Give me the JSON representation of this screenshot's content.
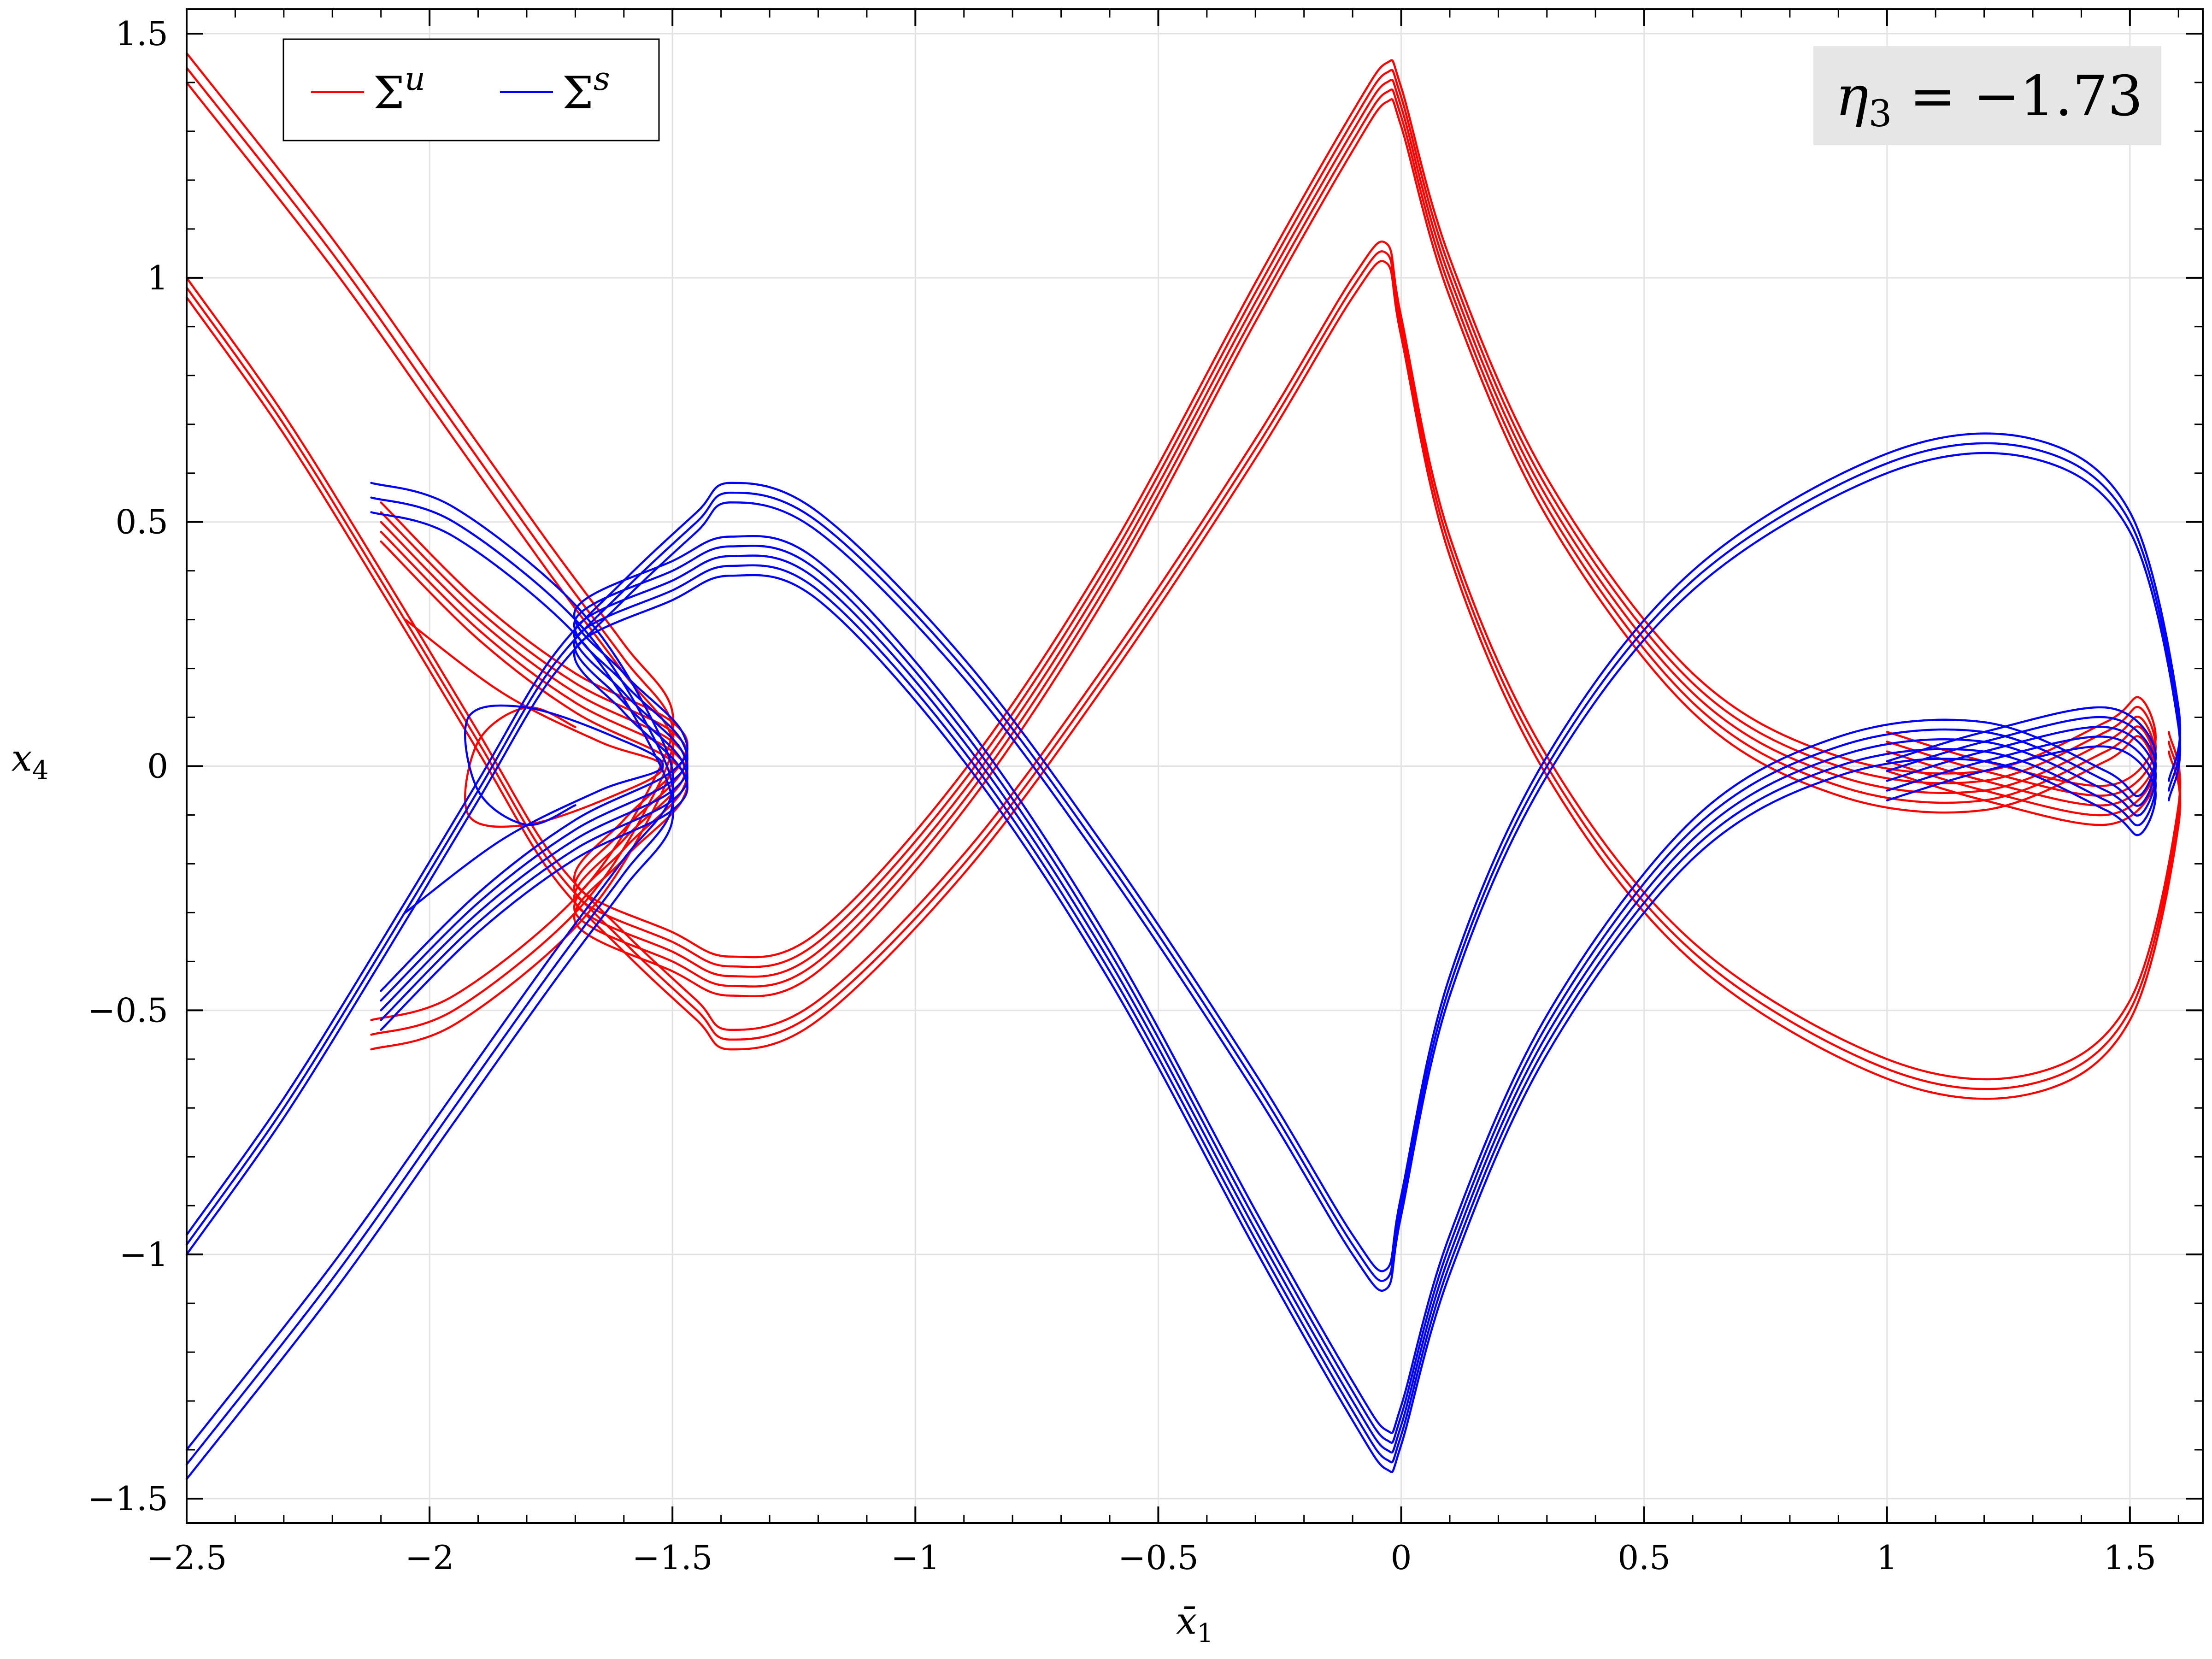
{
  "chart_data": {
    "type": "line",
    "title": "",
    "xlabel": "x̄",
    "xlabel_sub": "1",
    "ylabel": "x",
    "ylabel_sub": "4",
    "xlim": [
      -2.5,
      1.65
    ],
    "ylim": [
      -1.55,
      1.55
    ],
    "x_ticks": [
      -2.5,
      -2,
      -1.5,
      -1,
      -0.5,
      0,
      0.5,
      1,
      1.5
    ],
    "x_tick_labels": [
      "−2.5",
      "−2",
      "−1.5",
      "−1",
      "−0.5",
      "0",
      "0.5",
      "1",
      "1.5"
    ],
    "y_ticks": [
      -1.5,
      -1,
      -0.5,
      0,
      0.5,
      1,
      1.5
    ],
    "y_tick_labels": [
      "−1.5",
      "−1",
      "−0.5",
      "0",
      "0.5",
      "1",
      "1.5"
    ],
    "grid": true,
    "legend_position": "top-left",
    "annotation": {
      "prefix": "η",
      "sub": "3",
      "text": " = −1.73",
      "position": "top-right"
    },
    "series": [
      {
        "name": "Σ",
        "sup": "u",
        "color": "#ff0000",
        "strands": [
          {
            "label": "left-upper-band",
            "copies": [
              -0.03,
              0,
              0.03
            ],
            "points": [
              [
                -2.5,
                1.43
              ],
              [
                -2.2,
                1.05
              ],
              [
                -1.95,
                0.7
              ],
              [
                -1.75,
                0.42
              ],
              [
                -1.6,
                0.22
              ],
              [
                -1.5,
                0.08
              ],
              [
                -1.55,
                -0.08
              ],
              [
                -1.7,
                -0.3
              ],
              [
                -1.95,
                -0.5
              ],
              [
                -2.12,
                -0.55
              ]
            ]
          },
          {
            "label": "left-lower-band",
            "copies": [
              -0.02,
              0,
              0.02
            ],
            "points": [
              [
                -2.5,
                0.98
              ],
              [
                -2.3,
                0.7
              ],
              [
                -2.1,
                0.38
              ],
              [
                -1.9,
                0.05
              ],
              [
                -1.75,
                -0.2
              ],
              [
                -1.6,
                -0.36
              ],
              [
                -1.45,
                -0.5
              ],
              [
                -1.38,
                -0.56
              ],
              [
                -1.2,
                -0.5
              ],
              [
                -0.9,
                -0.2
              ],
              [
                -0.6,
                0.2
              ],
              [
                -0.3,
                0.65
              ],
              [
                -0.1,
                0.98
              ],
              [
                -0.03,
                1.05
              ],
              [
                0.0,
                0.9
              ],
              [
                0.1,
                0.45
              ],
              [
                0.3,
                0.0
              ],
              [
                0.6,
                -0.38
              ],
              [
                1.0,
                -0.62
              ],
              [
                1.3,
                -0.65
              ],
              [
                1.5,
                -0.5
              ],
              [
                1.6,
                -0.1
              ],
              [
                1.58,
                0.05
              ]
            ]
          },
          {
            "label": "center-peak-band",
            "copies": [
              -0.04,
              -0.02,
              0,
              0.02,
              0.04
            ],
            "points": [
              [
                -2.1,
                0.5
              ],
              [
                -1.9,
                0.3
              ],
              [
                -1.7,
                0.15
              ],
              [
                -1.5,
                0.05
              ],
              [
                -1.48,
                -0.03
              ],
              [
                -1.6,
                -0.15
              ],
              [
                -1.7,
                -0.28
              ],
              [
                -1.5,
                -0.38
              ],
              [
                -1.38,
                -0.43
              ],
              [
                -1.2,
                -0.38
              ],
              [
                -0.9,
                -0.05
              ],
              [
                -0.6,
                0.4
              ],
              [
                -0.3,
                0.95
              ],
              [
                -0.1,
                1.3
              ],
              [
                -0.03,
                1.4
              ],
              [
                0.0,
                1.35
              ],
              [
                0.1,
                1.0
              ],
              [
                0.3,
                0.55
              ],
              [
                0.6,
                0.15
              ],
              [
                0.9,
                -0.02
              ],
              [
                1.2,
                -0.05
              ],
              [
                1.45,
                0.05
              ],
              [
                1.52,
                0.1
              ],
              [
                1.55,
                0.0
              ],
              [
                1.45,
                -0.08
              ],
              [
                1.2,
                -0.03
              ],
              [
                1.0,
                0.03
              ]
            ]
          },
          {
            "label": "left-spiral",
            "copies": [
              0
            ],
            "points": [
              [
                -2.05,
                0.3
              ],
              [
                -1.85,
                0.15
              ],
              [
                -1.65,
                0.05
              ],
              [
                -1.52,
                0.0
              ],
              [
                -1.62,
                -0.06
              ],
              [
                -1.8,
                -0.12
              ],
              [
                -1.92,
                -0.1
              ],
              [
                -1.9,
                0.05
              ],
              [
                -1.8,
                0.12
              ],
              [
                -1.7,
                0.08
              ]
            ]
          }
        ]
      },
      {
        "name": "Σ",
        "sup": "s",
        "color": "#0000ff",
        "strands": [
          {
            "label": "left-lower-band",
            "copies": [
              -0.03,
              0,
              0.03
            ],
            "points": [
              [
                -2.5,
                -1.43
              ],
              [
                -2.2,
                -1.05
              ],
              [
                -1.95,
                -0.7
              ],
              [
                -1.75,
                -0.42
              ],
              [
                -1.6,
                -0.22
              ],
              [
                -1.5,
                -0.08
              ],
              [
                -1.55,
                0.08
              ],
              [
                -1.7,
                0.3
              ],
              [
                -1.95,
                0.5
              ],
              [
                -2.12,
                0.55
              ]
            ]
          },
          {
            "label": "left-upper-band",
            "copies": [
              -0.02,
              0,
              0.02
            ],
            "points": [
              [
                -2.5,
                -0.98
              ],
              [
                -2.3,
                -0.7
              ],
              [
                -2.1,
                -0.38
              ],
              [
                -1.9,
                -0.05
              ],
              [
                -1.75,
                0.2
              ],
              [
                -1.6,
                0.36
              ],
              [
                -1.45,
                0.5
              ],
              [
                -1.38,
                0.56
              ],
              [
                -1.2,
                0.5
              ],
              [
                -0.9,
                0.2
              ],
              [
                -0.6,
                -0.2
              ],
              [
                -0.3,
                -0.65
              ],
              [
                -0.1,
                -0.98
              ],
              [
                -0.03,
                -1.05
              ],
              [
                0.0,
                -0.9
              ],
              [
                0.1,
                -0.45
              ],
              [
                0.3,
                0.0
              ],
              [
                0.6,
                0.38
              ],
              [
                1.0,
                0.62
              ],
              [
                1.3,
                0.65
              ],
              [
                1.5,
                0.5
              ],
              [
                1.6,
                0.1
              ],
              [
                1.58,
                -0.05
              ]
            ]
          },
          {
            "label": "center-trough-band",
            "copies": [
              -0.04,
              -0.02,
              0,
              0.02,
              0.04
            ],
            "points": [
              [
                -2.1,
                -0.5
              ],
              [
                -1.9,
                -0.3
              ],
              [
                -1.7,
                -0.15
              ],
              [
                -1.5,
                -0.05
              ],
              [
                -1.48,
                0.03
              ],
              [
                -1.6,
                0.15
              ],
              [
                -1.7,
                0.28
              ],
              [
                -1.5,
                0.38
              ],
              [
                -1.38,
                0.43
              ],
              [
                -1.2,
                0.38
              ],
              [
                -0.9,
                0.05
              ],
              [
                -0.6,
                -0.4
              ],
              [
                -0.3,
                -0.95
              ],
              [
                -0.1,
                -1.3
              ],
              [
                -0.03,
                -1.4
              ],
              [
                0.0,
                -1.35
              ],
              [
                0.1,
                -1.0
              ],
              [
                0.3,
                -0.55
              ],
              [
                0.6,
                -0.15
              ],
              [
                0.9,
                0.02
              ],
              [
                1.2,
                0.05
              ],
              [
                1.45,
                -0.05
              ],
              [
                1.52,
                -0.1
              ],
              [
                1.55,
                0.0
              ],
              [
                1.45,
                0.08
              ],
              [
                1.2,
                0.03
              ],
              [
                1.0,
                -0.03
              ]
            ]
          },
          {
            "label": "left-spiral",
            "copies": [
              0
            ],
            "points": [
              [
                -2.05,
                -0.3
              ],
              [
                -1.85,
                -0.15
              ],
              [
                -1.65,
                -0.05
              ],
              [
                -1.52,
                0.0
              ],
              [
                -1.62,
                0.06
              ],
              [
                -1.8,
                0.12
              ],
              [
                -1.92,
                0.1
              ],
              [
                -1.9,
                -0.05
              ],
              [
                -1.8,
                -0.12
              ],
              [
                -1.7,
                -0.08
              ]
            ]
          }
        ]
      }
    ]
  }
}
